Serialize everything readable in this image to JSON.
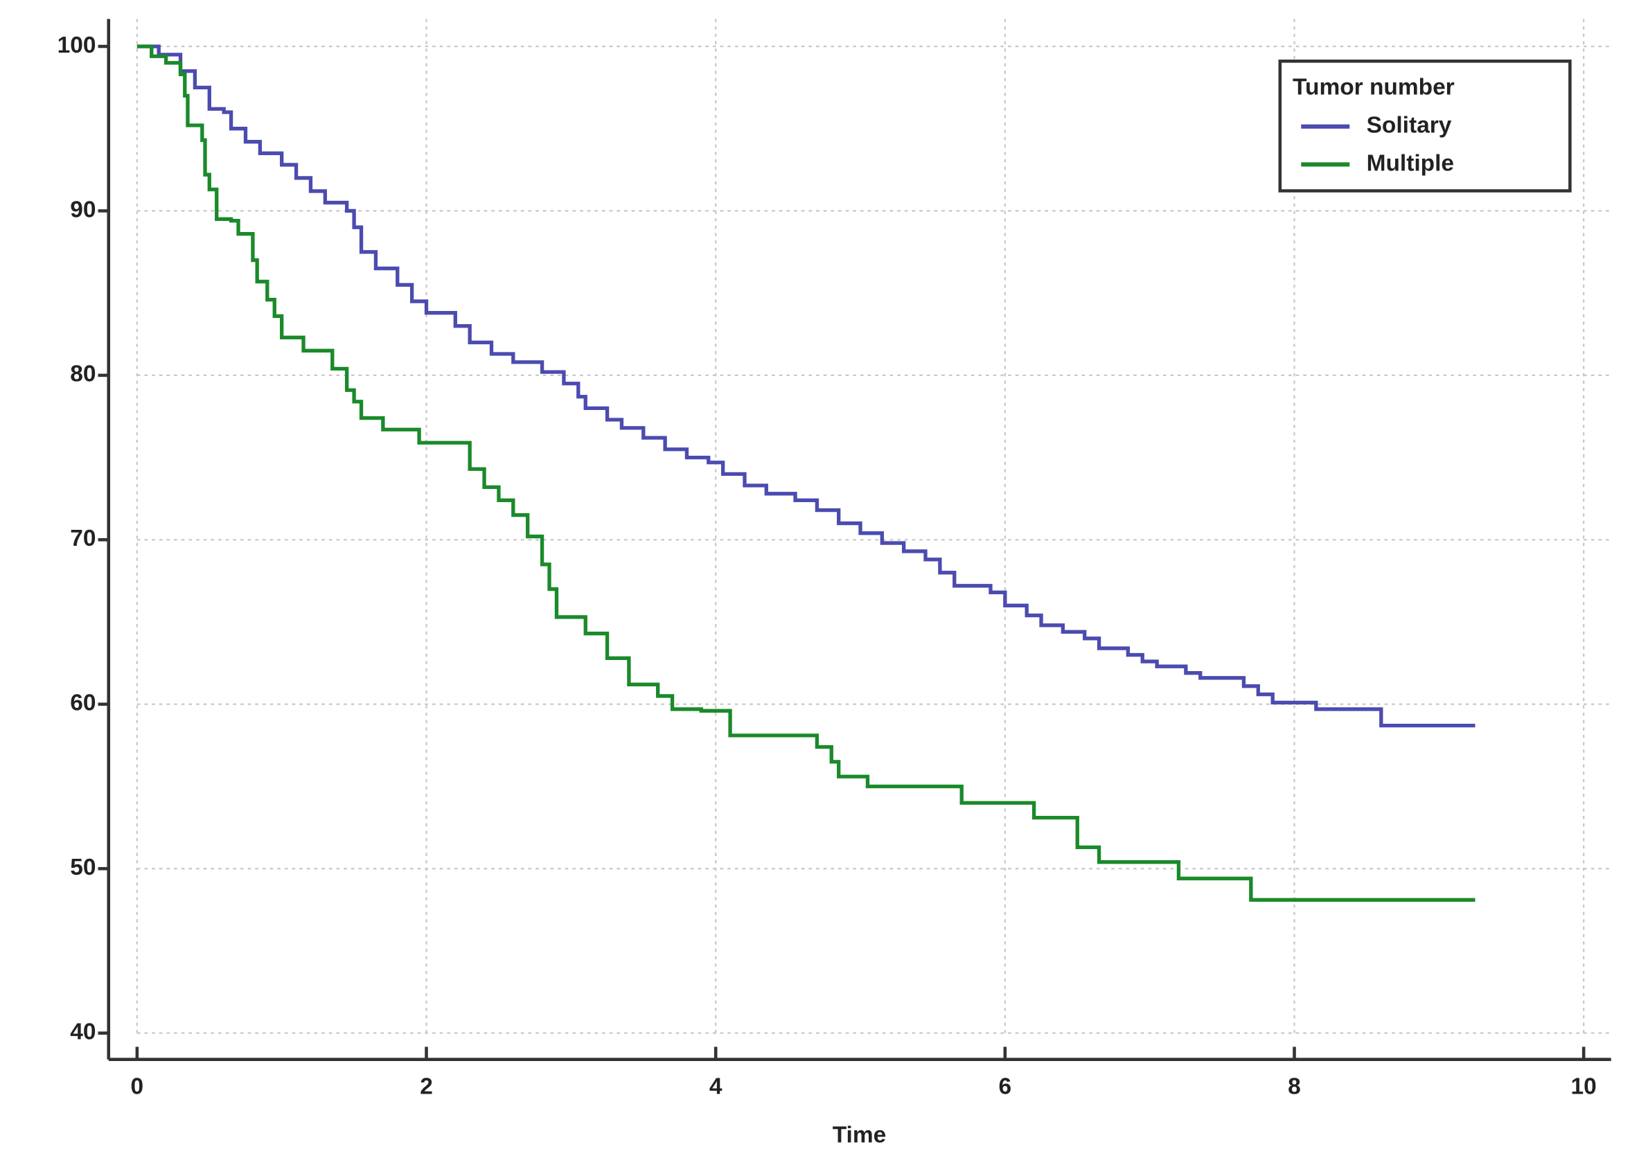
{
  "chart_data": {
    "type": "line",
    "drawstyle": "steps-post",
    "xlabel": "Time",
    "legend_title": "Tumor number",
    "legend": "upper right",
    "grid": true,
    "xlim": [
      0,
      10
    ],
    "xticks": [
      0,
      2,
      4,
      6,
      8,
      10
    ],
    "ylim": [
      40,
      100
    ],
    "yticks": [
      40,
      50,
      60,
      70,
      80,
      90,
      100
    ],
    "series": [
      {
        "name": "Solitary",
        "color": "#4b4bb0",
        "x": [
          0,
          0.15,
          0.3,
          0.4,
          0.5,
          0.6,
          0.65,
          0.75,
          0.85,
          1,
          1.1,
          1.2,
          1.3,
          1.45,
          1.5,
          1.55,
          1.65,
          1.8,
          1.9,
          2,
          2.2,
          2.3,
          2.45,
          2.6,
          2.8,
          2.95,
          3.05,
          3.1,
          3.25,
          3.35,
          3.5,
          3.65,
          3.8,
          3.95,
          4.05,
          4.2,
          4.35,
          4.55,
          4.7,
          4.85,
          5,
          5.15,
          5.3,
          5.45,
          5.55,
          5.65,
          5.9,
          6,
          6.15,
          6.25,
          6.4,
          6.55,
          6.65,
          6.85,
          6.95,
          7.05,
          7.25,
          7.35,
          7.65,
          7.75,
          7.85,
          8.15,
          8.6,
          9.25
        ],
        "values": [
          100,
          99.5,
          98.5,
          97.5,
          96.2,
          96,
          95,
          94.2,
          93.5,
          92.8,
          92,
          91.2,
          90.5,
          90,
          89,
          87.5,
          86.5,
          85.5,
          84.5,
          83.8,
          83,
          82,
          81.3,
          80.8,
          80.2,
          79.5,
          78.7,
          78,
          77.3,
          76.8,
          76.2,
          75.5,
          75,
          74.7,
          74,
          73.3,
          72.8,
          72.4,
          71.8,
          71,
          70.4,
          69.8,
          69.3,
          68.8,
          68,
          67.2,
          66.8,
          66,
          65.4,
          64.8,
          64.4,
          64,
          63.4,
          63,
          62.6,
          62.3,
          61.9,
          61.6,
          61.1,
          60.6,
          60.1,
          59.7,
          58.7,
          58.7
        ]
      },
      {
        "name": "Multiple",
        "color": "#1a8a2a",
        "x": [
          0,
          0.1,
          0.2,
          0.3,
          0.33,
          0.35,
          0.45,
          0.47,
          0.5,
          0.55,
          0.65,
          0.7,
          0.8,
          0.83,
          0.9,
          0.95,
          1,
          1.15,
          1.35,
          1.45,
          1.5,
          1.55,
          1.7,
          1.95,
          2.3,
          2.4,
          2.5,
          2.6,
          2.7,
          2.8,
          2.85,
          2.9,
          3.1,
          3.25,
          3.4,
          3.6,
          3.7,
          3.9,
          4.1,
          4.7,
          4.8,
          4.85,
          5.05,
          5.7,
          6.2,
          6.5,
          6.65,
          7.2,
          7.7,
          9.25
        ],
        "values": [
          100,
          99.4,
          99,
          98.3,
          97,
          95.2,
          94.3,
          92.2,
          91.3,
          89.5,
          89.4,
          88.6,
          87,
          85.7,
          84.6,
          83.6,
          82.3,
          81.5,
          80.4,
          79.1,
          78.4,
          77.4,
          76.7,
          75.9,
          74.3,
          73.2,
          72.4,
          71.5,
          70.2,
          68.5,
          67,
          65.3,
          64.3,
          62.8,
          61.2,
          60.5,
          59.7,
          59.6,
          58.1,
          57.4,
          56.5,
          55.6,
          55,
          54,
          53.1,
          51.3,
          50.4,
          49.4,
          48.1,
          48.1
        ]
      }
    ]
  }
}
